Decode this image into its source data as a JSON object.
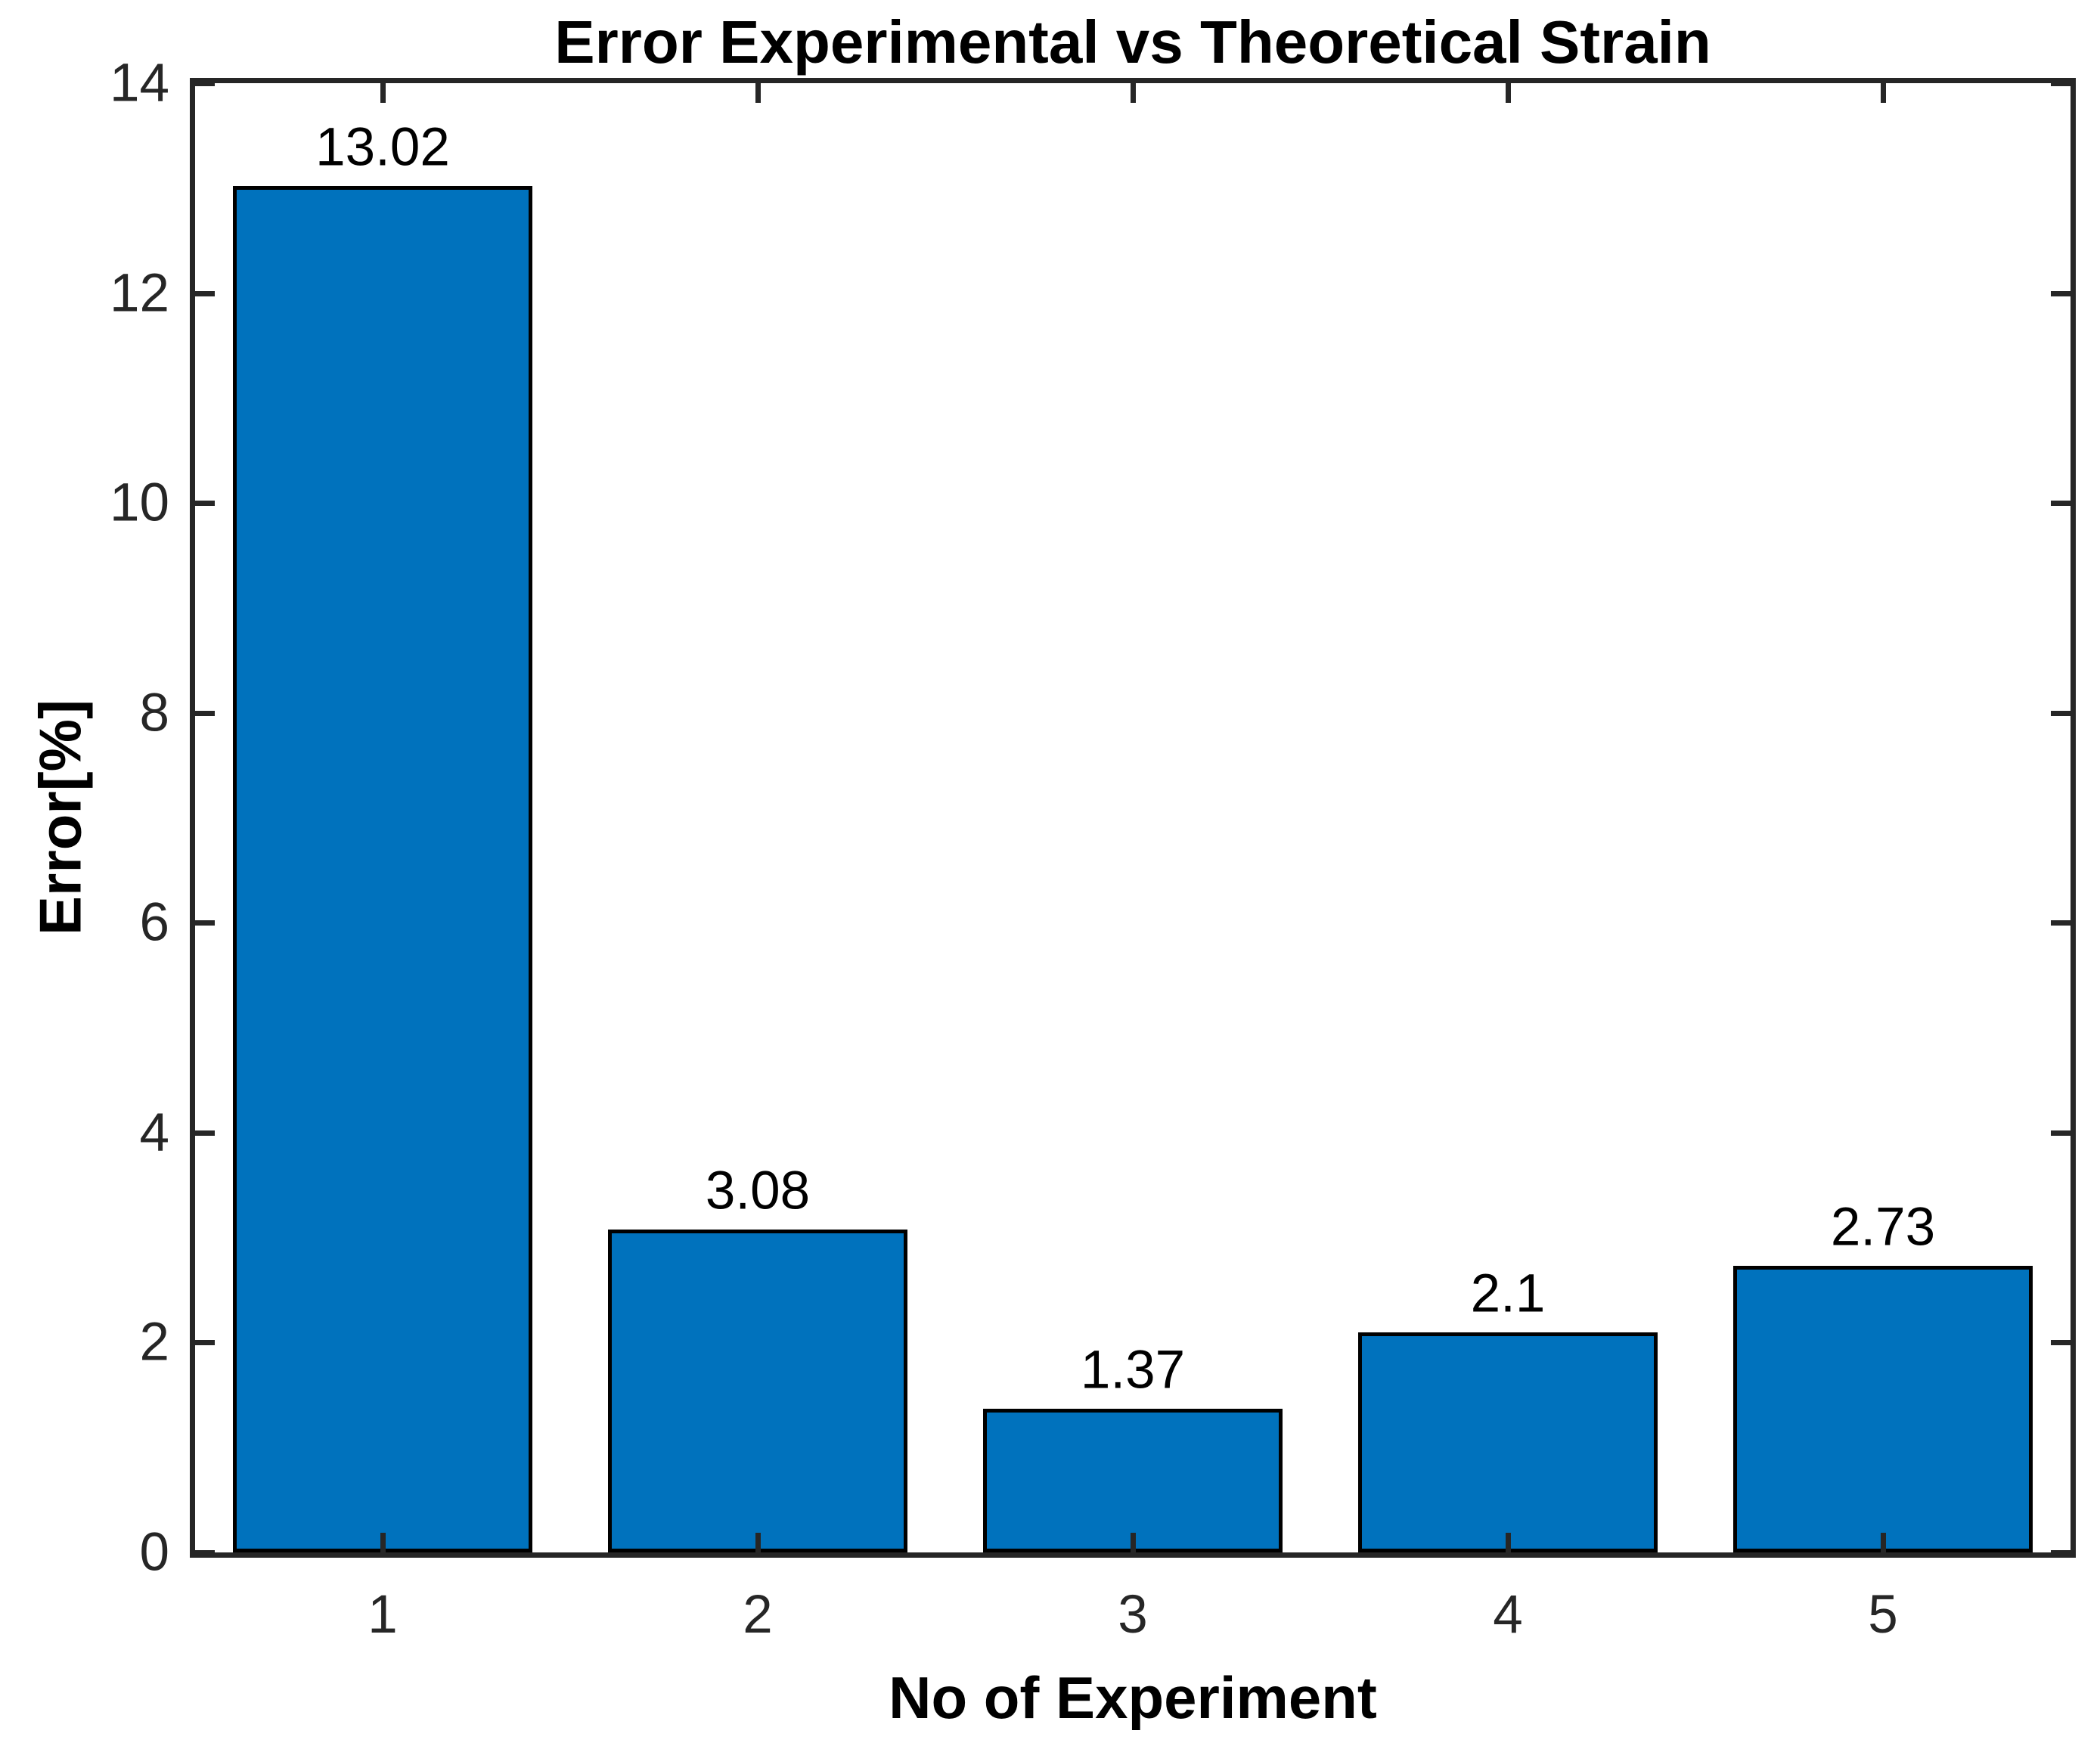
{
  "figure": {
    "background": "#ffffff"
  },
  "chart_data": {
    "type": "bar",
    "title": "Error Experimental vs Theoretical Strain",
    "xlabel": "No of Experiment",
    "ylabel": "Error[%]",
    "categories": [
      "1",
      "2",
      "3",
      "4",
      "5"
    ],
    "values": [
      13.02,
      3.08,
      1.37,
      2.1,
      2.73
    ],
    "bar_labels": [
      "13.02",
      "3.08",
      "1.37",
      "2.1",
      "2.73"
    ],
    "ylim": [
      0,
      14
    ],
    "yticks": [
      0,
      2,
      4,
      6,
      8,
      10,
      12,
      14
    ],
    "ytick_labels": [
      "0",
      "2",
      "4",
      "6",
      "8",
      "10",
      "12",
      "14"
    ],
    "xlim": [
      0.5,
      5.5
    ],
    "bar_width_fraction": 0.8,
    "grid": false,
    "legend": null,
    "bar_color": "#0072BD",
    "bar_edge_color": "#000000",
    "axis_color": "#262626"
  }
}
